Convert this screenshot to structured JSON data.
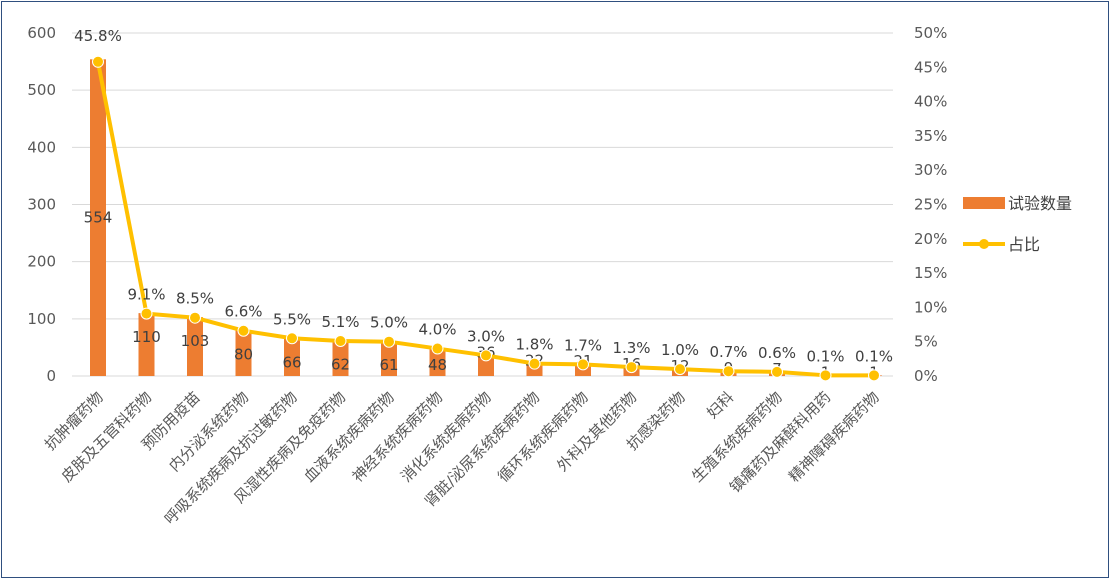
{
  "chart_data": {
    "type": "bar",
    "categories": [
      "抗肿瘤药物",
      "皮肤及五官科药物",
      "预防用疫苗",
      "内分泌系统药物",
      "呼吸系统疾病及抗过敏药物",
      "风湿性疾病及免疫药物",
      "血液系统疾病药物",
      "神经系统疾病药物",
      "消化系统疾病药物",
      "肾脏/泌尿系统疾病药物",
      "循环系统疾病药物",
      "外科及其他药物",
      "抗感染药物",
      "妇科",
      "生殖系统疾病药物",
      "镇痛药及麻醉科用药",
      "精神障碍疾病药物"
    ],
    "series": [
      {
        "name": "试验数量",
        "type": "bar",
        "axis": "left",
        "color": "#ED7D31",
        "values": [
          554,
          110,
          103,
          80,
          66,
          62,
          61,
          48,
          36,
          22,
          21,
          16,
          12,
          9,
          7,
          1,
          1
        ],
        "labels": [
          "554",
          "110",
          "103",
          "80",
          "66",
          "62",
          "61",
          "48",
          "36",
          "22",
          "21",
          "16",
          "12",
          "9",
          "7",
          "1",
          "1"
        ]
      },
      {
        "name": "占比",
        "type": "line",
        "axis": "right",
        "color": "#FFC000",
        "values": [
          45.8,
          9.1,
          8.5,
          6.6,
          5.5,
          5.1,
          5.0,
          4.0,
          3.0,
          1.8,
          1.7,
          1.3,
          1.0,
          0.7,
          0.6,
          0.1,
          0.1
        ],
        "labels": [
          "45.8%",
          "9.1%",
          "8.5%",
          "6.6%",
          "5.5%",
          "5.1%",
          "5.0%",
          "4.0%",
          "3.0%",
          "1.8%",
          "1.7%",
          "1.3%",
          "1.0%",
          "0.7%",
          "0.6%",
          "0.1%",
          "0.1%"
        ]
      }
    ],
    "y_left": {
      "min": 0,
      "max": 600,
      "ticks": [
        "0",
        "100",
        "200",
        "300",
        "400",
        "500",
        "600"
      ]
    },
    "y_right": {
      "min": 0,
      "max": 50,
      "ticks": [
        "0%",
        "5%",
        "10%",
        "15%",
        "20%",
        "25%",
        "30%",
        "35%",
        "40%",
        "45%",
        "50%"
      ]
    },
    "grid": true,
    "legend_position": "right",
    "title": "",
    "xlabel": "",
    "ylabel": ""
  }
}
